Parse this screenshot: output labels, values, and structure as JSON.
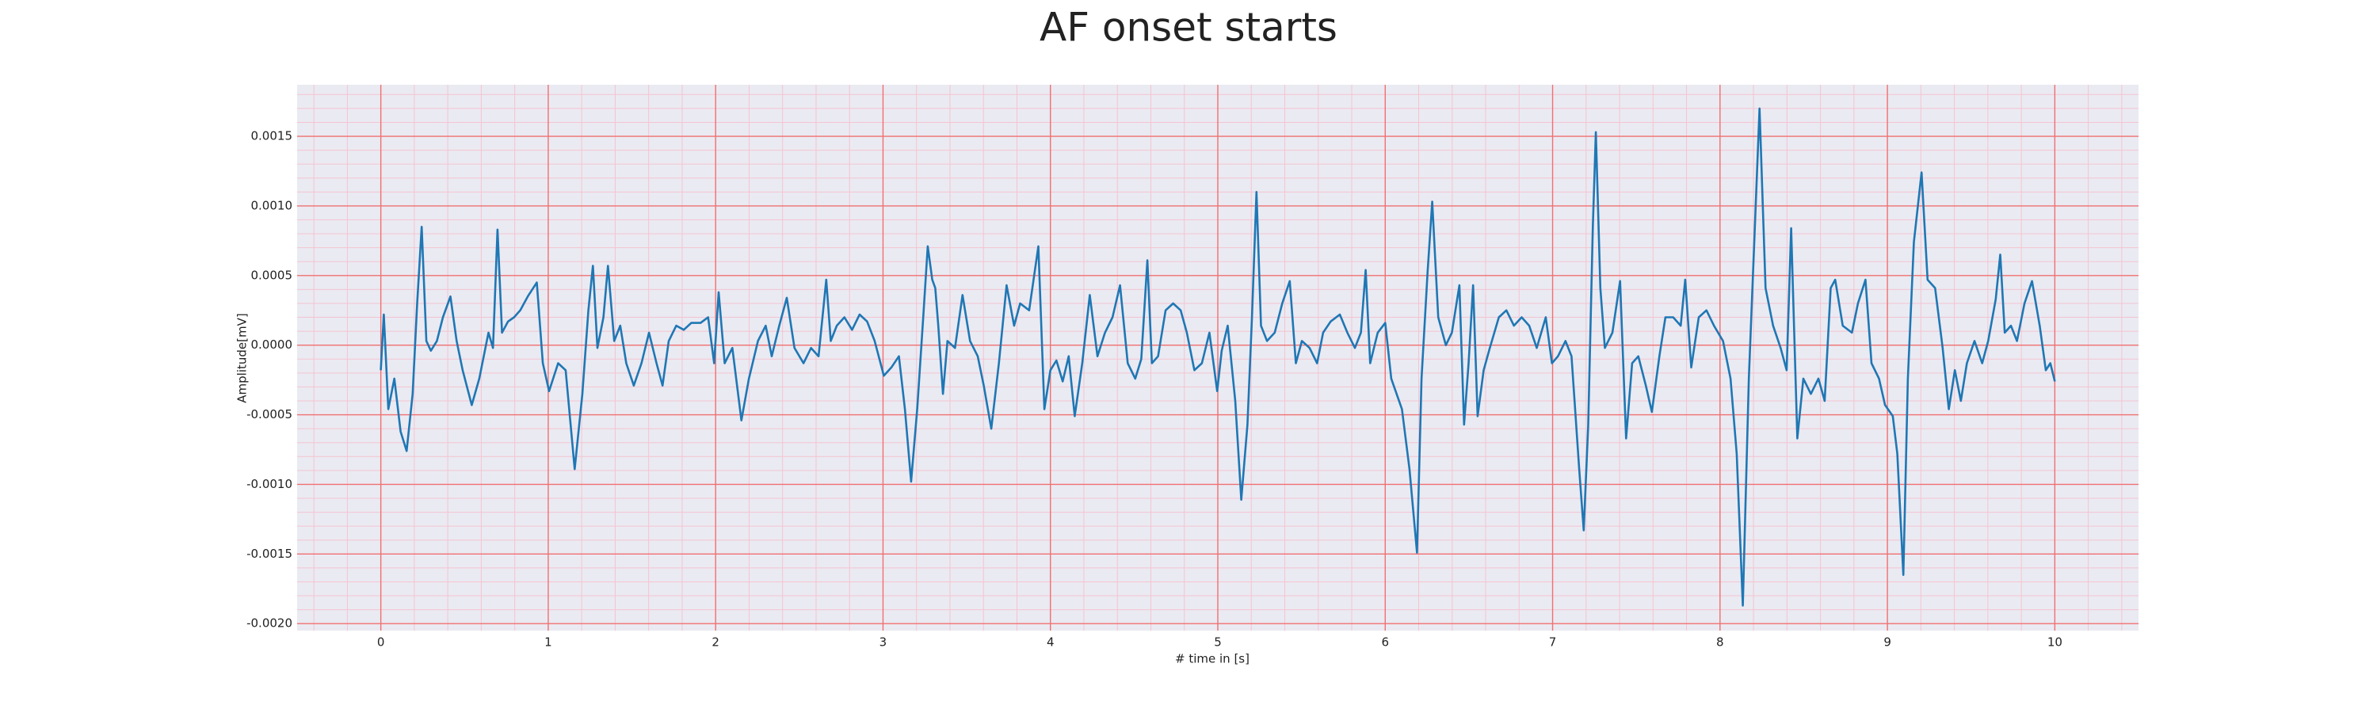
{
  "chart_data": {
    "type": "line",
    "title": "AF onset starts",
    "xlabel": "# time in [s]",
    "ylabel": "Amplitude[mV]",
    "xlim": [
      -0.5,
      10.5
    ],
    "xticks": [
      0,
      1,
      2,
      3,
      4,
      5,
      6,
      7,
      8,
      9,
      10
    ],
    "ylim": [
      -0.00205,
      0.00187
    ],
    "yticks": [
      {
        "value": -0.002,
        "label": "-0.0020"
      },
      {
        "value": -0.0015,
        "label": "-0.0015"
      },
      {
        "value": -0.001,
        "label": "-0.0010"
      },
      {
        "value": -0.0005,
        "label": "-0.0005"
      },
      {
        "value": 0,
        "label": "0.0000"
      },
      {
        "value": 0.0005,
        "label": "0.0005"
      },
      {
        "value": 0.001,
        "label": "0.0010"
      },
      {
        "value": 0.0015,
        "label": "0.0015"
      }
    ],
    "grid": true,
    "grid_color": "#f07070",
    "minor_grid": true,
    "minor_grid_color": "#f4c4d0",
    "background": "#eaeaf2",
    "series": [
      {
        "color": "#1f77b4",
        "x": [
          0,
          0.018,
          0.045,
          0.081,
          0.118,
          0.154,
          0.19,
          0.217,
          0.244,
          0.272,
          0.299,
          0.335,
          0.371,
          0.416,
          0.453,
          0.489,
          0.543,
          0.588,
          0.643,
          0.67,
          0.697,
          0.724,
          0.76,
          0.796,
          0.833,
          0.878,
          0.932,
          0.968,
          1.005,
          1.059,
          1.104,
          1.158,
          1.204,
          1.24,
          1.267,
          1.294,
          1.33,
          1.357,
          1.394,
          1.43,
          1.466,
          1.511,
          1.557,
          1.602,
          1.647,
          1.683,
          1.72,
          1.765,
          1.81,
          1.855,
          1.91,
          1.955,
          1.991,
          2.018,
          2.054,
          2.1,
          2.154,
          2.199,
          2.253,
          2.299,
          2.335,
          2.38,
          2.425,
          2.471,
          2.525,
          2.57,
          2.615,
          2.661,
          2.688,
          2.724,
          2.769,
          2.815,
          2.86,
          2.905,
          2.95,
          3.005,
          3.05,
          3.095,
          3.131,
          3.168,
          3.204,
          3.24,
          3.267,
          3.294,
          3.312,
          3.33,
          3.358,
          3.385,
          3.43,
          3.475,
          3.52,
          3.566,
          3.602,
          3.647,
          3.692,
          3.738,
          3.783,
          3.819,
          3.873,
          3.928,
          3.964,
          4.0,
          4.036,
          4.073,
          4.109,
          4.145,
          4.19,
          4.235,
          4.281,
          4.326,
          4.371,
          4.416,
          4.462,
          4.507,
          4.543,
          4.579,
          4.606,
          4.643,
          4.688,
          4.733,
          4.778,
          4.815,
          4.86,
          4.905,
          4.95,
          4.996,
          5.023,
          5.059,
          5.104,
          5.14,
          5.177,
          5.204,
          5.231,
          5.258,
          5.294,
          5.34,
          5.385,
          5.43,
          5.466,
          5.502,
          5.548,
          5.593,
          5.629,
          5.674,
          5.729,
          5.774,
          5.819,
          5.855,
          5.883,
          5.91,
          5.955,
          6.0,
          6.036,
          6.1,
          6.145,
          6.19,
          6.217,
          6.253,
          6.281,
          6.317,
          6.362,
          6.398,
          6.443,
          6.471,
          6.498,
          6.525,
          6.552,
          6.588,
          6.625,
          6.679,
          6.724,
          6.769,
          6.815,
          6.86,
          6.905,
          6.959,
          6.996,
          7.032,
          7.077,
          7.113,
          7.159,
          7.186,
          7.213,
          7.24,
          7.258,
          7.285,
          7.312,
          7.357,
          7.403,
          7.439,
          7.475,
          7.512,
          7.557,
          7.593,
          7.638,
          7.674,
          7.72,
          7.765,
          7.792,
          7.828,
          7.873,
          7.919,
          7.964,
          8.018,
          8.063,
          8.1,
          8.136,
          8.172,
          8.208,
          8.236,
          8.272,
          8.317,
          8.362,
          8.398,
          8.425,
          8.462,
          8.498,
          8.543,
          8.588,
          8.625,
          8.661,
          8.688,
          8.733,
          8.788,
          8.824,
          8.869,
          8.905,
          8.95,
          8.986,
          9.032,
          9.059,
          9.095,
          9.122,
          9.158,
          9.204,
          9.24,
          9.285,
          9.33,
          9.367,
          9.403,
          9.439,
          9.475,
          9.52,
          9.566,
          9.602,
          9.647,
          9.674,
          9.701,
          9.738,
          9.774,
          9.819,
          9.864,
          9.91,
          9.946,
          9.973,
          10.0
        ],
        "values": [
          -0.00018,
          0.00022,
          -0.00046,
          -0.00024,
          -0.00062,
          -0.00076,
          -0.00035,
          0.0003,
          0.00085,
          3e-05,
          -4e-05,
          3e-05,
          0.0002,
          0.00035,
          3e-05,
          -0.00018,
          -0.00043,
          -0.00024,
          9e-05,
          -2e-05,
          0.00083,
          9e-05,
          0.00017,
          0.0002,
          0.00025,
          0.00035,
          0.00045,
          -0.00013,
          -0.00033,
          -0.00013,
          -0.00018,
          -0.00089,
          -0.00035,
          0.00025,
          0.00057,
          -2e-05,
          0.0002,
          0.00057,
          3e-05,
          0.00014,
          -0.00013,
          -0.00029,
          -0.00013,
          9e-05,
          -0.00013,
          -0.00029,
          3e-05,
          0.00014,
          0.00011,
          0.00016,
          0.00016,
          0.0002,
          -0.00013,
          0.00038,
          -0.00013,
          -2e-05,
          -0.00054,
          -0.00024,
          3e-05,
          0.00014,
          -8e-05,
          0.00014,
          0.00034,
          -2e-05,
          -0.00013,
          -2e-05,
          -8e-05,
          0.00047,
          3e-05,
          0.00014,
          0.0002,
          0.00011,
          0.00022,
          0.00017,
          3e-05,
          -0.00022,
          -0.00016,
          -8e-05,
          -0.00046,
          -0.00098,
          -0.00046,
          0.0002,
          0.00071,
          0.00047,
          0.00041,
          0.00014,
          -0.00035,
          3e-05,
          -2e-05,
          0.00036,
          3e-05,
          -8e-05,
          -0.00029,
          -0.0006,
          -0.00013,
          0.00043,
          0.00014,
          0.0003,
          0.00025,
          0.00071,
          -0.00046,
          -0.00018,
          -0.00011,
          -0.00026,
          -8e-05,
          -0.00051,
          -0.00013,
          0.00036,
          -8e-05,
          9e-05,
          0.0002,
          0.00043,
          -0.00013,
          -0.00024,
          -0.0001,
          0.00061,
          -0.00013,
          -8e-05,
          0.00025,
          0.0003,
          0.00025,
          9e-05,
          -0.00018,
          -0.00013,
          9e-05,
          -0.00033,
          -4e-05,
          0.00014,
          -0.0004,
          -0.00111,
          -0.00057,
          0.0002,
          0.0011,
          0.00014,
          3e-05,
          9e-05,
          0.0003,
          0.00046,
          -0.00013,
          3e-05,
          -2e-05,
          -0.00013,
          9e-05,
          0.00017,
          0.00022,
          9e-05,
          -2e-05,
          9e-05,
          0.00054,
          -0.00013,
          9e-05,
          0.00016,
          -0.00024,
          -0.00046,
          -0.00089,
          -0.00149,
          -0.00024,
          0.00052,
          0.00103,
          0.0002,
          0,
          9e-05,
          0.00043,
          -0.00057,
          -0.00013,
          0.00043,
          -0.00051,
          -0.00018,
          -2e-05,
          0.0002,
          0.00025,
          0.00014,
          0.0002,
          0.00014,
          -2e-05,
          0.0002,
          -0.00013,
          -8e-05,
          3e-05,
          -8e-05,
          -0.00089,
          -0.00133,
          -0.00057,
          0.00085,
          0.00153,
          0.00041,
          -2e-05,
          9e-05,
          0.00046,
          -0.00067,
          -0.00013,
          -8e-05,
          -0.00029,
          -0.00048,
          -8e-05,
          0.0002,
          0.0002,
          0.00014,
          0.00047,
          -0.00016,
          0.0002,
          0.00025,
          0.00014,
          3e-05,
          -0.00024,
          -0.00078,
          -0.00187,
          -0.00024,
          0.00085,
          0.0017,
          0.00041,
          0.00014,
          -2e-05,
          -0.00018,
          0.00084,
          -0.00067,
          -0.00024,
          -0.00035,
          -0.00024,
          -0.0004,
          0.00041,
          0.00047,
          0.00014,
          9e-05,
          0.0003,
          0.00047,
          -0.00013,
          -0.00024,
          -0.00043,
          -0.00051,
          -0.00078,
          -0.00165,
          -0.00024,
          0.00074,
          0.00124,
          0.00047,
          0.00041,
          -2e-05,
          -0.00046,
          -0.00018,
          -0.0004,
          -0.00013,
          3e-05,
          -0.00013,
          3e-05,
          0.00033,
          0.00065,
          9e-05,
          0.00014,
          3e-05,
          0.0003,
          0.00046,
          0.00014,
          -0.00018,
          -0.00013,
          -0.00026
        ]
      }
    ]
  }
}
